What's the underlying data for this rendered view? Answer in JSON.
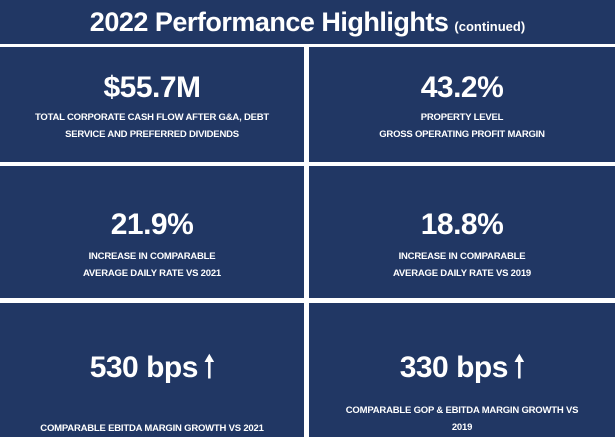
{
  "title": {
    "main": "2022 Performance Highlights",
    "sub": "(continued)"
  },
  "colors": {
    "panel": "#213764",
    "background": "#ffffff",
    "text": "#ffffff"
  },
  "panels": [
    {
      "value": "$55.7M",
      "lines": [
        "TOTAL CORPORATE CASH FLOW AFTER G&A, DEBT",
        "SERVICE AND PREFERRED DIVIDENDS"
      ]
    },
    {
      "value": "43.2%",
      "lines": [
        "PROPERTY LEVEL",
        "GROSS OPERATING PROFIT MARGIN"
      ]
    },
    {
      "value": "21.9%",
      "lines": [
        "INCREASE IN COMPARABLE",
        "AVERAGE DAILY RATE VS 2021"
      ]
    },
    {
      "value": "18.8%",
      "lines": [
        "INCREASE IN COMPARABLE",
        "AVERAGE DAILY RATE VS 2019"
      ]
    },
    {
      "value": "530 bps",
      "icon": "arrow-up-icon",
      "lines": [
        "COMPARABLE EBITDA MARGIN GROWTH VS 2021"
      ]
    },
    {
      "value": "330 bps",
      "icon": "arrow-up-icon",
      "lines": [
        "COMPARABLE GOP & EBITDA MARGIN GROWTH VS",
        "2019"
      ]
    }
  ]
}
